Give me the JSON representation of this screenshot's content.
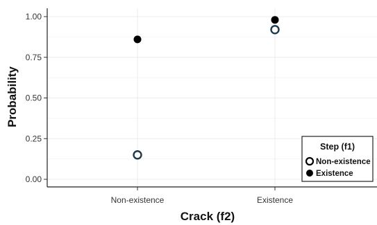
{
  "chart_data": {
    "type": "scatter",
    "title": "",
    "xlabel": "Crack (f2)",
    "ylabel": "Probability",
    "categories": [
      "Non-existence",
      "Existence"
    ],
    "ylim": [
      0,
      1.05
    ],
    "y_ticks": [
      "0.00",
      "0.25",
      "0.50",
      "0.75",
      "1.00"
    ],
    "grid": true,
    "legend": {
      "title": "Step (f1)",
      "position": "bottom-right",
      "entries": [
        "Non-existence",
        "Existence"
      ]
    },
    "series": [
      {
        "name": "Non-existence",
        "marker": "hollow-circle",
        "color": "#1f3a4d",
        "values": [
          0.15,
          0.92
        ]
      },
      {
        "name": "Existence",
        "marker": "filled-circle",
        "color": "#000000",
        "values": [
          0.86,
          0.98
        ]
      }
    ]
  }
}
